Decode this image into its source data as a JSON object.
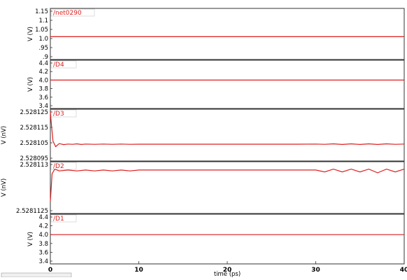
{
  "colors": {
    "trace": "#dd1f1f",
    "tag_border": "#c8c8c8",
    "frame": "#333333",
    "background": "#ffffff"
  },
  "chart_data": [
    {
      "type": "line",
      "name": "/net0290",
      "ylabel": "V (V)",
      "yticks": [
        "1.15",
        "1.1",
        "1.05",
        "1.0",
        ".95",
        ".9"
      ],
      "ylim": [
        0.9,
        1.15
      ],
      "x": [
        0,
        40
      ],
      "y": [
        1.01,
        1.01
      ]
    },
    {
      "type": "line",
      "name": "/D4",
      "ylabel": "V (V)",
      "yticks": [
        "4.4",
        "4.2",
        "4.0",
        "3.8",
        "3.6",
        "3.4"
      ],
      "ylim": [
        3.4,
        4.4
      ],
      "x": [
        0,
        40
      ],
      "y": [
        4.0,
        4.0
      ]
    },
    {
      "type": "line",
      "name": "/D3",
      "ylabel": "V (nV)",
      "yticks": [
        "2.528125",
        "2.528115",
        "2.528105",
        "2.528095"
      ],
      "ylim": [
        2.528095,
        2.528125
      ],
      "x": [
        0,
        0.1,
        0.3,
        0.6,
        1.0,
        1.5,
        2.0,
        2.5,
        3.0,
        3.5,
        4.0,
        5.0,
        6.0,
        7.0,
        8.0,
        9.0,
        10.0,
        12.0,
        14.0,
        16.0,
        18.0,
        20.0,
        22.0,
        24.0,
        26.0,
        28.0,
        30.0,
        31.0,
        32.0,
        33.0,
        34.0,
        35.0,
        36.0,
        37.0,
        38.0,
        39.0,
        40.0
      ],
      "y": [
        2.528125,
        2.528118,
        2.528106,
        2.5281025,
        2.5281045,
        2.5281038,
        2.5281042,
        2.528104,
        2.5281043,
        2.5281039,
        2.5281042,
        2.528104,
        2.5281042,
        2.528104,
        2.5281042,
        2.528104,
        2.5281041,
        2.5281041,
        2.5281041,
        2.5281041,
        2.5281041,
        2.5281041,
        2.5281041,
        2.5281041,
        2.5281041,
        2.5281041,
        2.5281042,
        2.528104,
        2.5281043,
        2.5281039,
        2.5281043,
        2.5281039,
        2.5281043,
        2.5281039,
        2.5281043,
        2.528104,
        2.5281042
      ]
    },
    {
      "type": "line",
      "name": "/D2",
      "ylabel": "V (nV)",
      "yticks": [
        "2.528113",
        "2.5281125"
      ],
      "ylim": [
        2.5281125,
        2.528113
      ],
      "x": [
        0,
        0.2,
        0.5,
        1.0,
        2.0,
        3.0,
        4.0,
        5.0,
        6.0,
        7.0,
        8.0,
        9.0,
        10.0,
        12.0,
        14.0,
        16.0,
        18.0,
        20.0,
        22.0,
        24.0,
        26.0,
        28.0,
        30.0,
        31.0,
        32.0,
        33.0,
        34.0,
        35.0,
        36.0,
        37.0,
        38.0,
        39.0,
        40.0
      ],
      "y": [
        2.5281126,
        2.5281129,
        2.52811295,
        2.52811293,
        2.52811294,
        2.52811293,
        2.52811294,
        2.52811293,
        2.52811294,
        2.52811293,
        2.52811294,
        2.52811293,
        2.52811294,
        2.52811294,
        2.52811294,
        2.52811294,
        2.52811294,
        2.52811294,
        2.52811294,
        2.52811294,
        2.52811294,
        2.52811294,
        2.52811294,
        2.52811292,
        2.52811295,
        2.52811292,
        2.52811295,
        2.52811292,
        2.52811295,
        2.52811291,
        2.52811295,
        2.52811292,
        2.52811295
      ]
    },
    {
      "type": "line",
      "name": "/D1",
      "ylabel": "V (V)",
      "yticks": [
        "4.4",
        "4.2",
        "4.0",
        "3.8",
        "3.6",
        "3.4"
      ],
      "ylim": [
        3.4,
        4.4
      ],
      "x": [
        0,
        40
      ],
      "y": [
        4.0,
        4.0
      ]
    }
  ],
  "x_axis": {
    "label": "time (ps)",
    "ticks": [
      "0",
      "10",
      "20",
      "30",
      "40"
    ],
    "xlim": [
      0,
      40
    ]
  }
}
